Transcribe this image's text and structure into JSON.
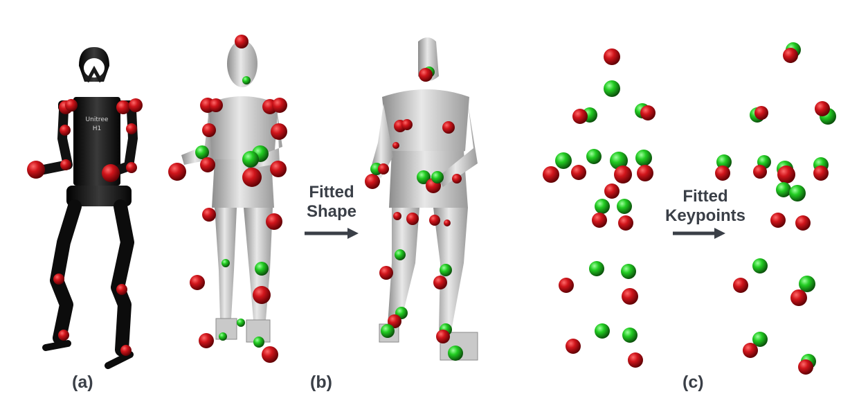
{
  "figure": {
    "panel_labels": {
      "a": "(a)",
      "b": "(b)",
      "c": "(c)"
    },
    "arrow_b": {
      "line1": "Fitted",
      "line2": "Shape"
    },
    "arrow_c": {
      "line1": "Fitted",
      "line2": "Keypoints"
    },
    "robot_chest_text": {
      "line1": "Unitree",
      "line2": "H1"
    }
  },
  "colors": {
    "red_marker": "#c8141a",
    "green_marker": "#1ec81e",
    "robot_body": "#141414",
    "human_mesh": "#b8b8b8",
    "text": "#3a3f47"
  }
}
